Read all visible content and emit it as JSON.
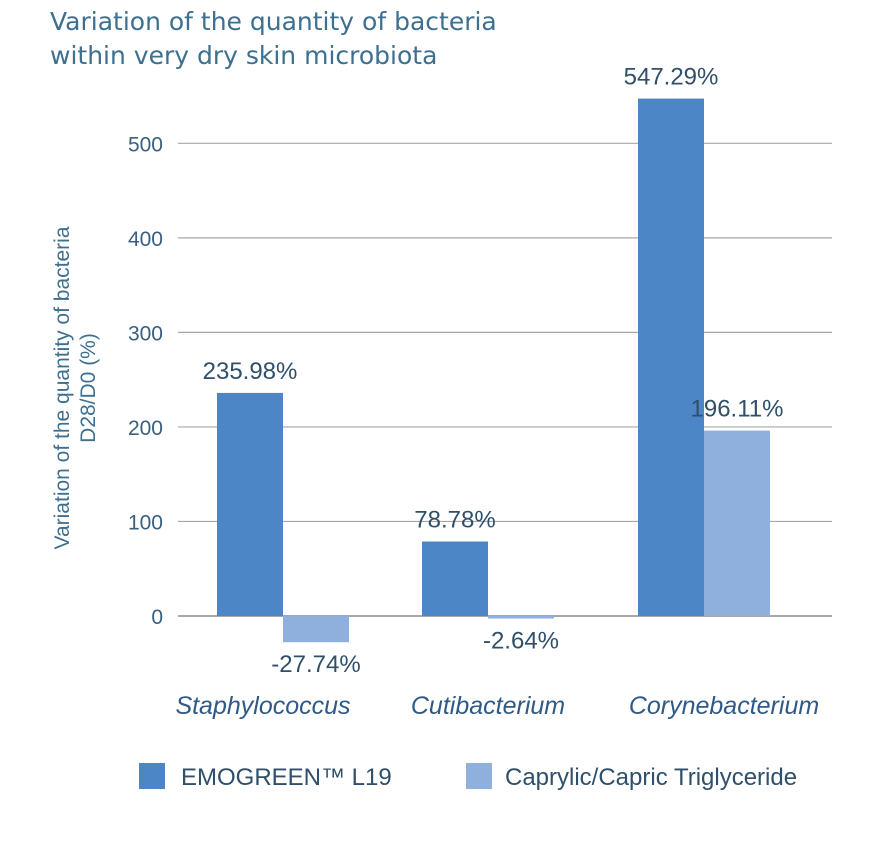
{
  "chart_data": {
    "type": "bar",
    "title": [
      "Variation of the quantity of bacteria",
      "within very dry skin microbiota"
    ],
    "ylabel": [
      "Variation of the quantity of bacteria",
      "D28/D0 (%)"
    ],
    "xlabel": "",
    "categories": [
      "Staphylococcus",
      "Cutibacterium",
      "Corynebacterium"
    ],
    "series": [
      {
        "name": "EMOGREEN™ L19",
        "color": "#4d86c6",
        "values": [
          235.98,
          78.78,
          547.29
        ],
        "labels": [
          "235.98%",
          "78.78%",
          "547.29%"
        ]
      },
      {
        "name": "Caprylic/Capric Triglyceride",
        "color": "#8fb0dd",
        "values": [
          -27.74,
          -2.64,
          196.11
        ],
        "labels": [
          "-27.74%",
          "-2.64%",
          "196.11%"
        ]
      }
    ],
    "yticks": [
      0,
      100,
      200,
      300,
      400,
      500
    ],
    "ylim": [
      -30,
      550
    ],
    "grid": true,
    "legend_position": "bottom"
  }
}
